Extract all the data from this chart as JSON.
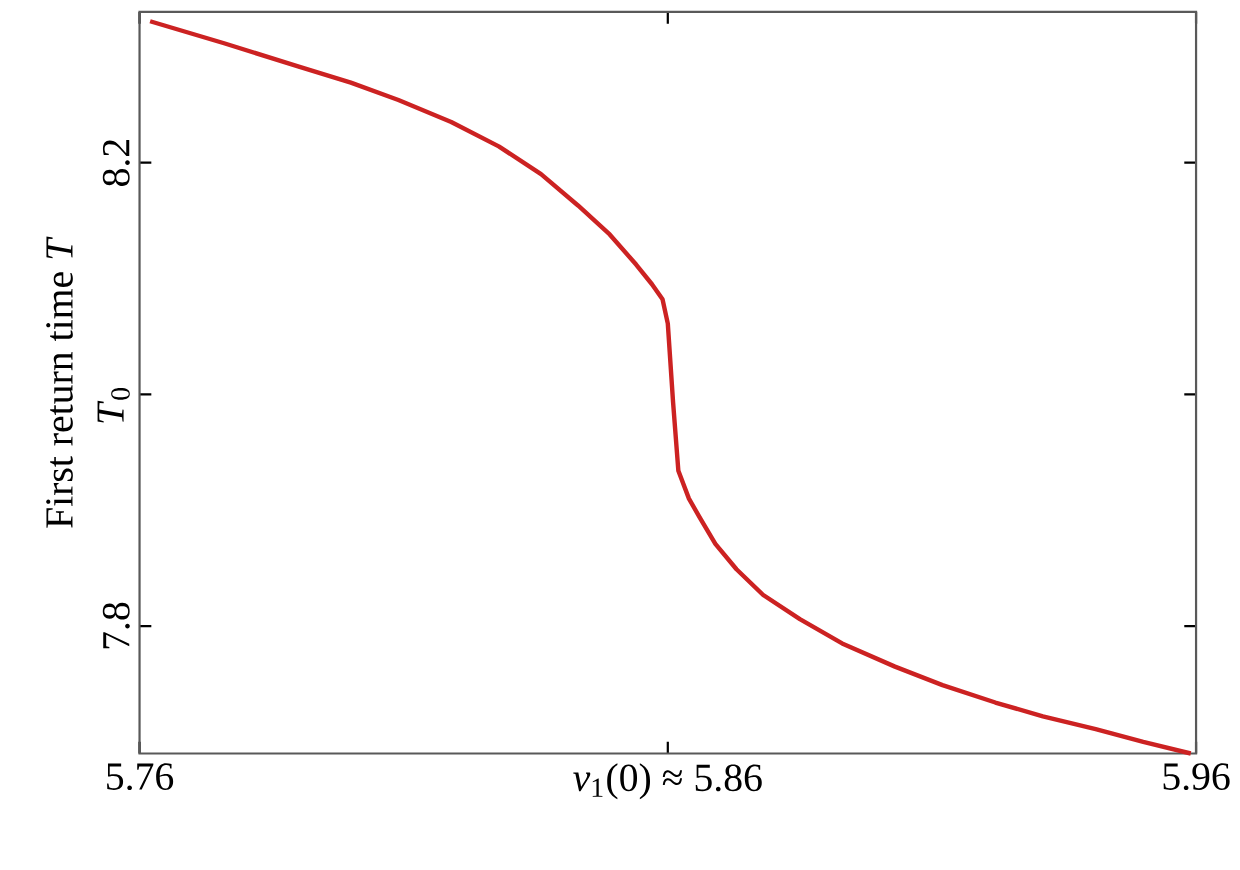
{
  "chart_data": {
    "type": "line",
    "ylabel": "First return time *T*",
    "x": [
      5.762,
      5.776,
      5.79,
      5.8,
      5.809,
      5.819,
      5.828,
      5.836,
      5.843,
      5.849,
      5.854,
      5.857,
      5.859,
      5.86,
      5.861,
      5.862,
      5.864,
      5.866,
      5.869,
      5.873,
      5.878,
      5.885,
      5.893,
      5.903,
      5.912,
      5.922,
      5.931,
      5.941,
      5.95,
      5.959
    ],
    "series": [
      {
        "color": "#cc2222",
        "values": [
          8.322,
          8.303,
          8.283,
          8.269,
          8.254,
          8.235,
          8.214,
          8.19,
          8.163,
          8.138,
          8.112,
          8.095,
          8.082,
          8.061,
          7.993,
          7.934,
          7.91,
          7.894,
          7.871,
          7.849,
          7.827,
          7.806,
          7.785,
          7.765,
          7.749,
          7.734,
          7.722,
          7.711,
          7.7,
          7.69
        ]
      }
    ],
    "xlim": [
      5.76,
      5.96
    ],
    "ylim": [
      7.69,
      8.33
    ],
    "xticks": [
      5.76,
      {
        "value": 5.86,
        "label": "*v*$_{1}$(0) ≈ 5.86"
      },
      5.96
    ],
    "yticks": [
      7.8,
      {
        "value": 8.0,
        "label": null
      },
      8.2
    ],
    "annotations": [
      "*T*$_{0}$"
    ],
    "grid": false,
    "marker": "none",
    "line_style": "solid"
  }
}
